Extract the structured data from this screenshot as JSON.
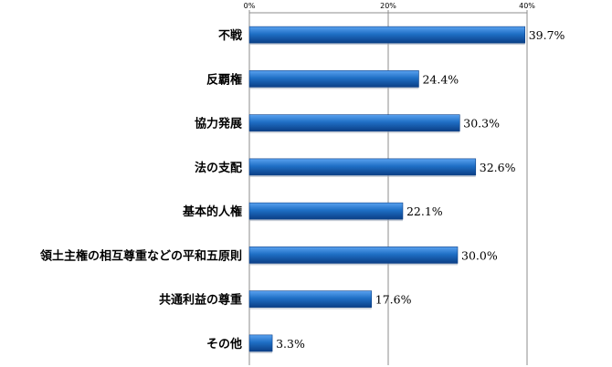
{
  "chart_data": {
    "type": "bar",
    "orientation": "horizontal",
    "categories": [
      "不戦",
      "反覇権",
      "協力発展",
      "法の支配",
      "基本的人権",
      "領土主権の相互尊重などの平和五原則",
      "共通利益の尊重",
      "その他"
    ],
    "values": [
      39.7,
      24.4,
      30.3,
      32.6,
      22.1,
      30.0,
      17.6,
      3.3
    ],
    "value_labels": [
      "39.7%",
      "24.4%",
      "30.3%",
      "32.6%",
      "22.1%",
      "30.0%",
      "17.6%",
      "3.3%"
    ],
    "xlim": [
      0,
      40
    ],
    "xticks": [
      0,
      20,
      40
    ],
    "xtick_labels": [
      "0%",
      "20%",
      "40%"
    ],
    "tick_position": "top",
    "grid": true,
    "bar_color": "#1f6fc5",
    "bar_color_light": "#5aa2f0",
    "bar_color_dark": "#0b3f86"
  }
}
